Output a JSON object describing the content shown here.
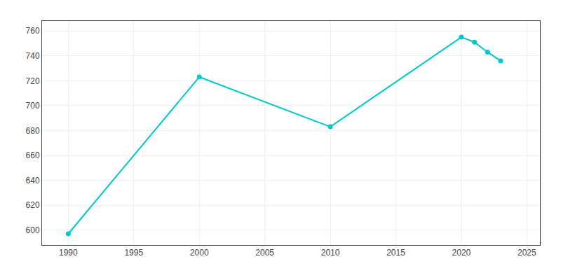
{
  "chart_data": {
    "type": "line",
    "x": [
      1990,
      2000,
      2010,
      2020,
      2021,
      2022,
      2023
    ],
    "values": [
      597,
      723,
      683,
      755,
      751,
      743,
      736
    ],
    "color": "#00C8C8",
    "marker": "circle",
    "xlim": [
      1988,
      2026
    ],
    "ylim": [
      588,
      768
    ],
    "xticks": [
      1990,
      1995,
      2000,
      2005,
      2010,
      2015,
      2020,
      2025
    ],
    "yticks": [
      600,
      620,
      640,
      660,
      680,
      700,
      720,
      740,
      760
    ],
    "grid": true
  }
}
